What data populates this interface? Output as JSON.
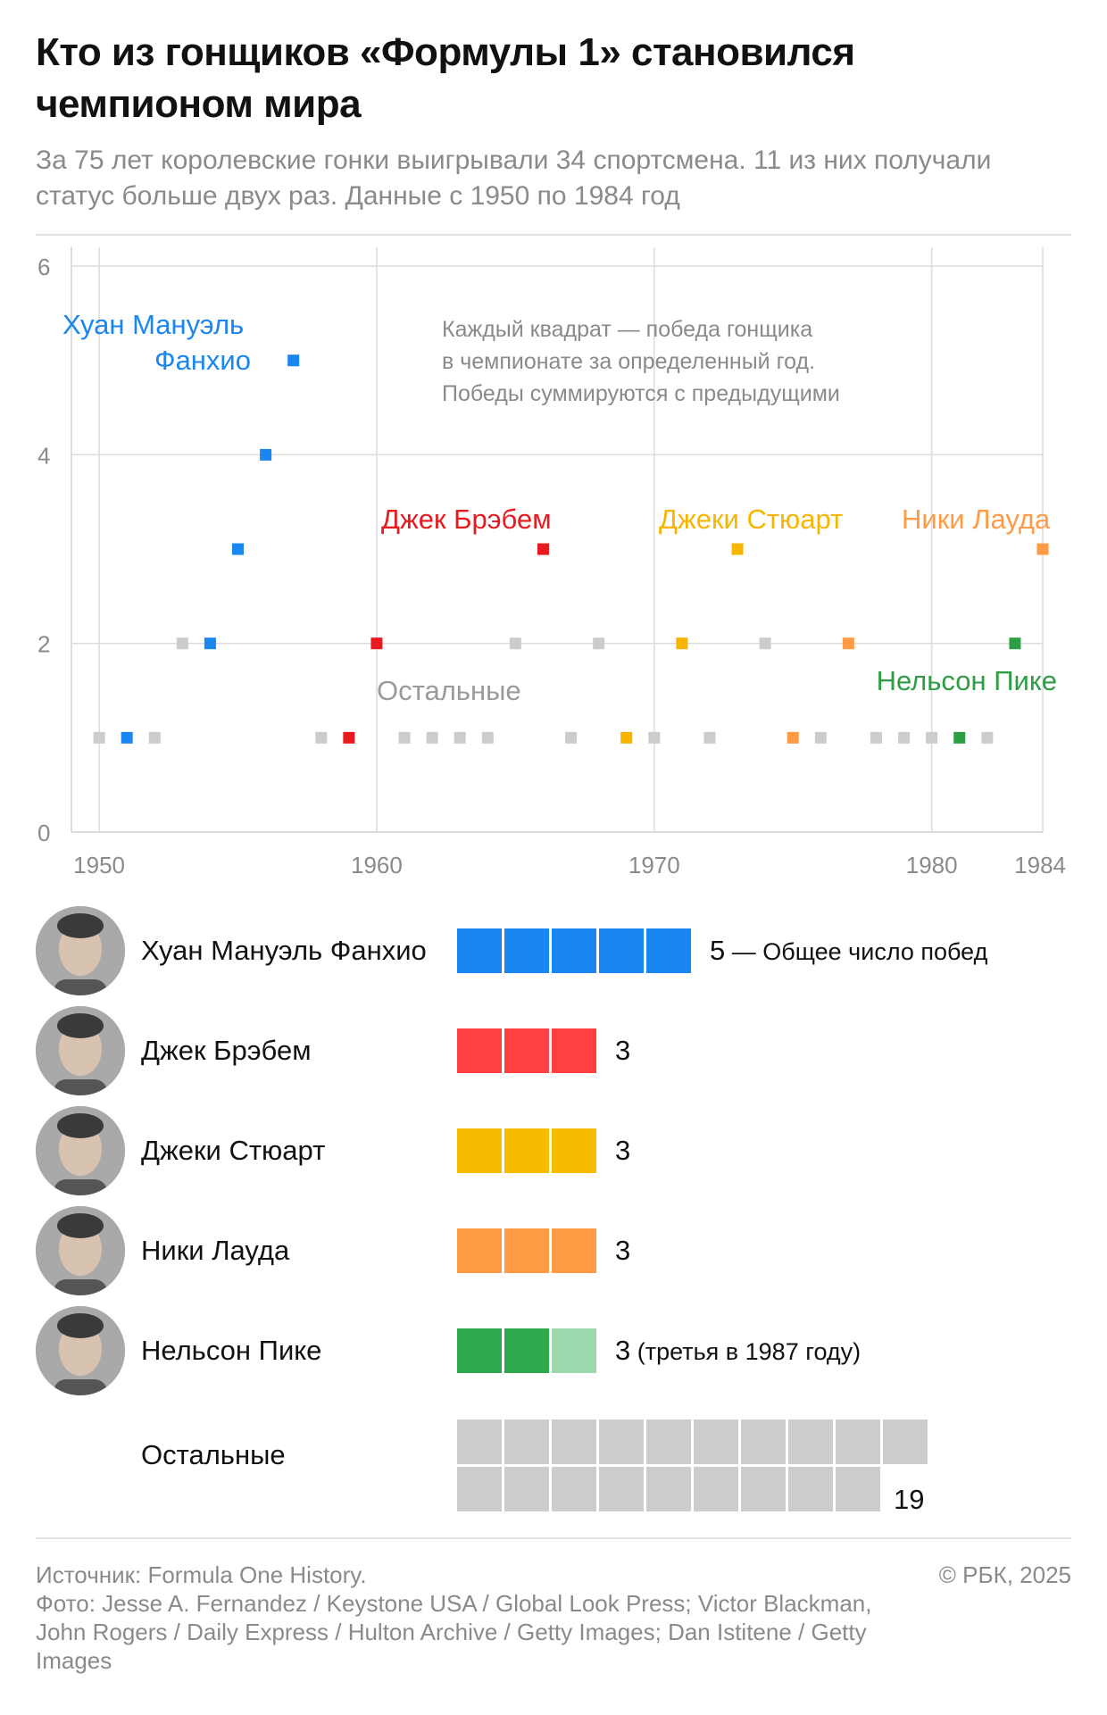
{
  "header": {
    "title": "Кто из гонщиков «Формулы 1» становился чемпионом мира",
    "subtitle": "За 75 лет королевские гонки выигрывали 34 спортсмена. 11 из них получали статус больше двух раз. Данные с 1950 по 1984 год"
  },
  "chart_data": {
    "type": "scatter",
    "xlabel": "",
    "ylabel": "",
    "xlim": [
      1949,
      1984
    ],
    "ylim": [
      0,
      6.2
    ],
    "x_ticks": [
      1950,
      1960,
      1970,
      1980,
      1984
    ],
    "y_ticks": [
      0,
      2,
      4,
      6
    ],
    "grid": true,
    "annotation": "Каждый квадрат — победа гонщика в чемпионате за определенный год. Победы суммируются с предыдущими",
    "series": [
      {
        "name": "Хуан Мануэль Фанхио",
        "color": "#1a86f0",
        "points": [
          [
            1951,
            1
          ],
          [
            1954,
            2
          ],
          [
            1955,
            3
          ],
          [
            1956,
            4
          ],
          [
            1957,
            5
          ]
        ]
      },
      {
        "name": "Джек Брэбем",
        "color": "#e8191f",
        "points": [
          [
            1959,
            1
          ],
          [
            1960,
            2
          ],
          [
            1966,
            3
          ]
        ]
      },
      {
        "name": "Джеки Стюарт",
        "color": "#f7b500",
        "points": [
          [
            1969,
            1
          ],
          [
            1971,
            2
          ],
          [
            1973,
            3
          ]
        ]
      },
      {
        "name": "Ники Лауда",
        "color": "#ff9a45",
        "points": [
          [
            1975,
            1
          ],
          [
            1977,
            2
          ],
          [
            1984,
            3
          ]
        ]
      },
      {
        "name": "Нельсон Пике",
        "color": "#2e9e44",
        "points": [
          [
            1981,
            1
          ],
          [
            1983,
            2
          ]
        ]
      },
      {
        "name": "Остальные",
        "color": "#cccccc",
        "points": [
          [
            1950,
            1
          ],
          [
            1952,
            1
          ],
          [
            1953,
            2
          ],
          [
            1958,
            1
          ],
          [
            1961,
            1
          ],
          [
            1962,
            1
          ],
          [
            1963,
            1
          ],
          [
            1964,
            1
          ],
          [
            1965,
            2
          ],
          [
            1967,
            1
          ],
          [
            1968,
            2
          ],
          [
            1970,
            1
          ],
          [
            1972,
            1
          ],
          [
            1974,
            2
          ],
          [
            1976,
            1
          ],
          [
            1978,
            1
          ],
          [
            1979,
            1
          ],
          [
            1980,
            1
          ],
          [
            1982,
            1
          ]
        ]
      }
    ]
  },
  "legend": {
    "rows": [
      {
        "name": "Хуан Мануэль Фанхио",
        "count": "5",
        "note": " — Общее число побед",
        "colors": [
          "#1a86f0",
          "#1a86f0",
          "#1a86f0",
          "#1a86f0",
          "#1a86f0"
        ]
      },
      {
        "name": "Джек Брэбем",
        "count": "3",
        "note": "",
        "colors": [
          "#fe4040",
          "#fe4040",
          "#fe4040"
        ]
      },
      {
        "name": "Джеки Стюарт",
        "count": "3",
        "note": "",
        "colors": [
          "#f7bc00",
          "#f7bc00",
          "#f7bc00"
        ]
      },
      {
        "name": "Ники Лауда",
        "count": "3",
        "note": "",
        "colors": [
          "#ff9a45",
          "#ff9a45",
          "#ff9a45"
        ]
      },
      {
        "name": "Нельсон Пике",
        "count": "3",
        "note": " (третья в 1987 году)",
        "colors": [
          "#2ea84c",
          "#2ea84c",
          "#9ed9ae"
        ]
      }
    ],
    "others": {
      "name": "Остальные",
      "count": "19",
      "color": "#cccccc"
    }
  },
  "footer": {
    "source": "Источник: Formula One History.",
    "photo": "Фото: Jesse A. Fernandez / Keystone USA / Global Look Press; Victor Blackman, John Rogers / Daily Express / Hulton Archive / Getty Images; Dan Istitene / Getty Images",
    "copyright": "© РБК, 2025"
  }
}
